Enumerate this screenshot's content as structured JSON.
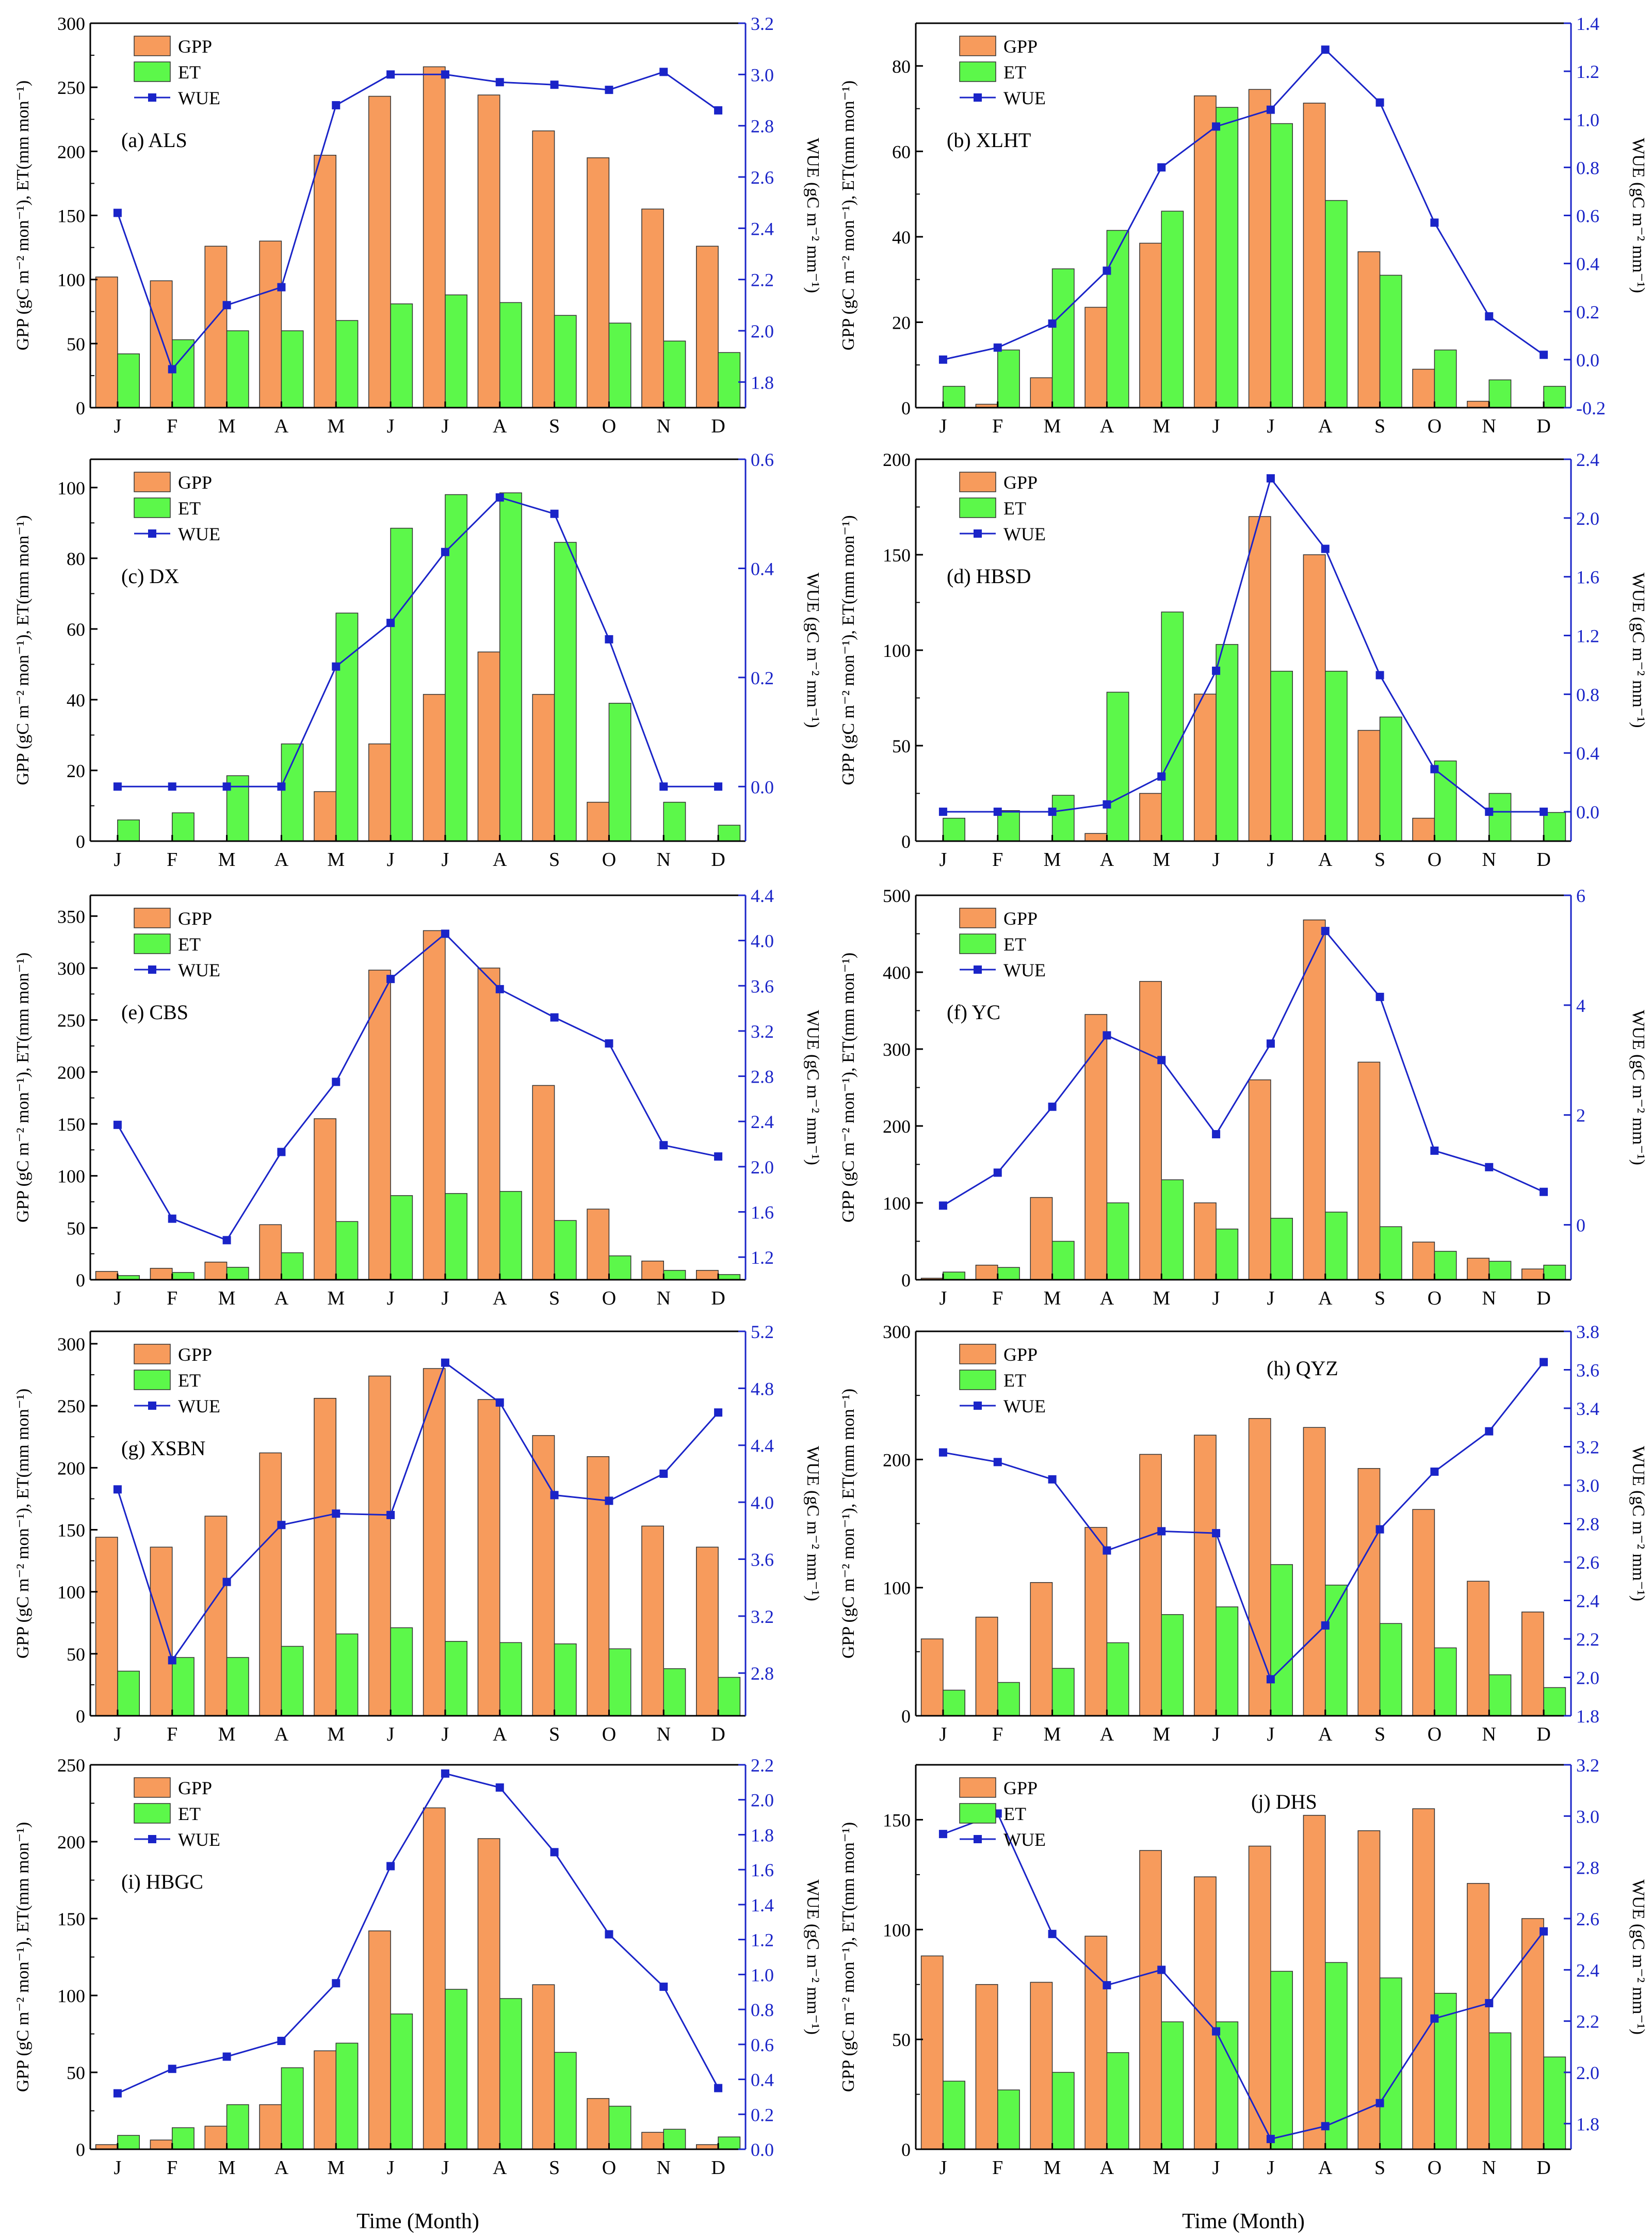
{
  "figure": {
    "x_axis_title": "Time (Month)"
  },
  "colors": {
    "gpp": "#F79B5C",
    "et": "#5CF84A",
    "wue": "#1A24C8",
    "axis": "#000000"
  },
  "chart_data": [
    {
      "type": "bar",
      "panel": "a",
      "title": "(a) ALS",
      "categories": [
        "J",
        "F",
        "M",
        "A",
        "M",
        "J",
        "J",
        "A",
        "S",
        "O",
        "N",
        "D"
      ],
      "series": [
        {
          "name": "GPP",
          "axis": "left",
          "kind": "bar",
          "values": [
            102,
            99,
            126,
            130,
            197,
            243,
            266,
            244,
            216,
            195,
            155,
            126
          ]
        },
        {
          "name": "ET",
          "axis": "left",
          "kind": "bar",
          "values": [
            42,
            53,
            60,
            60,
            68,
            81,
            88,
            82,
            72,
            66,
            52,
            43
          ]
        },
        {
          "name": "WUE",
          "axis": "right",
          "kind": "line",
          "values": [
            2.46,
            1.85,
            2.1,
            2.17,
            2.88,
            3.0,
            3.0,
            2.97,
            2.96,
            2.94,
            3.01,
            2.86
          ]
        }
      ],
      "ylabel": "GPP (gC m⁻² mon⁻¹), ET(mm mon⁻¹)",
      "ylabel_right": "WUE (gC m⁻² mm⁻¹)",
      "ylim": [
        0,
        300
      ],
      "yticks": [
        0,
        50,
        100,
        150,
        200,
        250,
        300
      ],
      "ylim_right": [
        1.7,
        3.2
      ],
      "yticks_right": [
        1.8,
        2.0,
        2.2,
        2.4,
        2.6,
        2.8,
        3.0,
        3.2
      ],
      "legend": "top-left"
    },
    {
      "type": "bar",
      "panel": "b",
      "title": "(b) XLHT",
      "categories": [
        "J",
        "F",
        "M",
        "A",
        "M",
        "J",
        "J",
        "A",
        "S",
        "O",
        "N",
        "D"
      ],
      "series": [
        {
          "name": "GPP",
          "axis": "left",
          "kind": "bar",
          "values": [
            0,
            0.8,
            7,
            23.5,
            38.5,
            73,
            74.5,
            71.3,
            36.5,
            9,
            1.5,
            0
          ]
        },
        {
          "name": "ET",
          "axis": "left",
          "kind": "bar",
          "values": [
            5,
            13.5,
            32.5,
            41.5,
            46,
            70.3,
            66.5,
            48.5,
            31,
            13.5,
            6.5,
            5
          ]
        },
        {
          "name": "WUE",
          "axis": "right",
          "kind": "line",
          "values": [
            0.0,
            0.05,
            0.15,
            0.37,
            0.8,
            0.97,
            1.04,
            1.29,
            1.07,
            0.57,
            0.18,
            0.02
          ]
        }
      ],
      "ylabel": "GPP (gC m⁻² mon⁻¹), ET(mm mon⁻¹)",
      "ylabel_right": "WUE (gC m⁻² mm⁻¹)",
      "ylim": [
        0,
        90
      ],
      "yticks": [
        0,
        20,
        40,
        60,
        80
      ],
      "ylim_right": [
        -0.2,
        1.4
      ],
      "yticks_right": [
        -0.2,
        0.0,
        0.2,
        0.4,
        0.6,
        0.8,
        1.0,
        1.2,
        1.4
      ],
      "legend": "top-left"
    },
    {
      "type": "bar",
      "panel": "c",
      "title": "(c) DX",
      "categories": [
        "J",
        "F",
        "M",
        "A",
        "M",
        "J",
        "J",
        "A",
        "S",
        "O",
        "N",
        "D"
      ],
      "series": [
        {
          "name": "GPP",
          "axis": "left",
          "kind": "bar",
          "values": [
            0,
            0,
            0,
            0,
            14,
            27.5,
            41.5,
            53.5,
            41.5,
            11,
            0,
            0
          ]
        },
        {
          "name": "ET",
          "axis": "left",
          "kind": "bar",
          "values": [
            6,
            8,
            18.5,
            27.5,
            64.5,
            88.5,
            98,
            98.5,
            84.5,
            39,
            11,
            4.5
          ]
        },
        {
          "name": "WUE",
          "axis": "right",
          "kind": "line",
          "values": [
            0,
            0,
            0,
            0,
            0.22,
            0.3,
            0.43,
            0.53,
            0.5,
            0.27,
            0,
            0
          ]
        }
      ],
      "ylabel": "GPP (gC m⁻² mon⁻¹), ET(mm mon⁻¹)",
      "ylabel_right": "WUE (gC m⁻² mm⁻¹)",
      "ylim": [
        0,
        108
      ],
      "yticks": [
        0,
        20,
        40,
        60,
        80,
        100
      ],
      "ylim_right": [
        -0.1,
        0.6
      ],
      "yticks_right": [
        0.0,
        0.2,
        0.4,
        0.6
      ],
      "legend": "top-left"
    },
    {
      "type": "bar",
      "panel": "d",
      "title": "(d) HBSD",
      "categories": [
        "J",
        "F",
        "M",
        "A",
        "M",
        "J",
        "J",
        "A",
        "S",
        "O",
        "N",
        "D"
      ],
      "series": [
        {
          "name": "GPP",
          "axis": "left",
          "kind": "bar",
          "values": [
            0,
            0,
            0,
            4,
            25,
            77,
            170,
            150,
            58,
            12,
            0,
            0
          ]
        },
        {
          "name": "ET",
          "axis": "left",
          "kind": "bar",
          "values": [
            12,
            16,
            24,
            78,
            120,
            103,
            89,
            89,
            65,
            42,
            25,
            15
          ]
        },
        {
          "name": "WUE",
          "axis": "right",
          "kind": "line",
          "values": [
            0,
            0,
            0,
            0.05,
            0.24,
            0.96,
            2.27,
            1.79,
            0.93,
            0.29,
            0,
            0
          ]
        }
      ],
      "ylabel": "GPP (gC m⁻² mon⁻¹), ET(mm mon⁻¹)",
      "ylabel_right": "WUE (gC m⁻² mm⁻¹)",
      "ylim": [
        0,
        200
      ],
      "yticks": [
        0,
        50,
        100,
        150,
        200
      ],
      "ylim_right": [
        -0.2,
        2.4
      ],
      "yticks_right": [
        0.0,
        0.4,
        0.8,
        1.2,
        1.6,
        2.0,
        2.4
      ],
      "legend": "top-left"
    },
    {
      "type": "bar",
      "panel": "e",
      "title": "(e) CBS",
      "categories": [
        "J",
        "F",
        "M",
        "A",
        "M",
        "J",
        "J",
        "A",
        "S",
        "O",
        "N",
        "D"
      ],
      "series": [
        {
          "name": "GPP",
          "axis": "left",
          "kind": "bar",
          "values": [
            8,
            11,
            17,
            53,
            155,
            298,
            336,
            300,
            187,
            68,
            18,
            9
          ]
        },
        {
          "name": "ET",
          "axis": "left",
          "kind": "bar",
          "values": [
            4,
            7,
            12,
            26,
            56,
            81,
            83,
            85,
            57,
            23,
            9,
            5
          ]
        },
        {
          "name": "WUE",
          "axis": "right",
          "kind": "line",
          "values": [
            2.37,
            1.54,
            1.35,
            2.13,
            2.75,
            3.66,
            4.06,
            3.57,
            3.32,
            3.09,
            2.19,
            2.09
          ]
        }
      ],
      "ylabel": "GPP (gC m⁻² mon⁻¹), ET(mm mon⁻¹)",
      "ylabel_right": "WUE (gC m⁻² mm⁻¹)",
      "ylim": [
        0,
        370
      ],
      "yticks": [
        0,
        50,
        100,
        150,
        200,
        250,
        300,
        350
      ],
      "ylim_right": [
        1.0,
        4.4
      ],
      "yticks_right": [
        1.2,
        1.6,
        2.0,
        2.4,
        2.8,
        3.2,
        3.6,
        4.0,
        4.4
      ],
      "legend": "top-left"
    },
    {
      "type": "bar",
      "panel": "f",
      "title": "(f) YC",
      "categories": [
        "J",
        "F",
        "M",
        "A",
        "M",
        "J",
        "J",
        "A",
        "S",
        "O",
        "N",
        "D"
      ],
      "series": [
        {
          "name": "GPP",
          "axis": "left",
          "kind": "bar",
          "values": [
            2,
            19,
            107,
            345,
            388,
            100,
            260,
            468,
            283,
            49,
            28,
            14
          ]
        },
        {
          "name": "ET",
          "axis": "left",
          "kind": "bar",
          "values": [
            10,
            16,
            50,
            100,
            130,
            66,
            80,
            88,
            69,
            37,
            24,
            19
          ]
        },
        {
          "name": "WUE",
          "axis": "right",
          "kind": "line",
          "values": [
            0.35,
            0.95,
            2.15,
            3.45,
            3.0,
            1.65,
            3.3,
            5.35,
            4.15,
            1.35,
            1.05,
            0.6
          ]
        }
      ],
      "ylabel": "GPP (gC m⁻² mon⁻¹), ET(mm mon⁻¹)",
      "ylabel_right": "WUE (gC m⁻² mm⁻¹)",
      "ylim": [
        0,
        500
      ],
      "yticks": [
        0,
        100,
        200,
        300,
        400,
        500
      ],
      "ylim_right": [
        -1,
        6
      ],
      "yticks_right": [
        0,
        2,
        4,
        6
      ],
      "legend": "top-left"
    },
    {
      "type": "bar",
      "panel": "g",
      "title": "(g) XSBN",
      "categories": [
        "J",
        "F",
        "M",
        "A",
        "M",
        "J",
        "J",
        "A",
        "S",
        "O",
        "N",
        "D"
      ],
      "series": [
        {
          "name": "GPP",
          "axis": "left",
          "kind": "bar",
          "values": [
            144,
            136,
            161,
            212,
            256,
            274,
            280,
            255,
            226,
            209,
            153,
            136
          ]
        },
        {
          "name": "ET",
          "axis": "left",
          "kind": "bar",
          "values": [
            36,
            47,
            47,
            56,
            66,
            71,
            60,
            59,
            58,
            54,
            38,
            31
          ]
        },
        {
          "name": "WUE",
          "axis": "right",
          "kind": "line",
          "values": [
            4.09,
            2.89,
            3.44,
            3.84,
            3.92,
            3.91,
            4.98,
            4.7,
            4.05,
            4.01,
            4.2,
            4.63
          ]
        }
      ],
      "ylabel": "GPP (gC m⁻² mon⁻¹), ET(mm mon⁻¹)",
      "ylabel_right": "WUE (gC m⁻² mm⁻¹)",
      "ylim": [
        0,
        310
      ],
      "yticks": [
        0,
        50,
        100,
        150,
        200,
        250,
        300
      ],
      "ylim_right": [
        2.5,
        5.2
      ],
      "yticks_right": [
        2.8,
        3.2,
        3.6,
        4.0,
        4.4,
        4.8,
        5.2
      ],
      "legend": "top-left"
    },
    {
      "type": "bar",
      "panel": "h",
      "title": "(h) QYZ",
      "categories": [
        "J",
        "F",
        "M",
        "A",
        "M",
        "J",
        "J",
        "A",
        "S",
        "O",
        "N",
        "D"
      ],
      "series": [
        {
          "name": "GPP",
          "axis": "left",
          "kind": "bar",
          "values": [
            60,
            77,
            104,
            147,
            204,
            219,
            232,
            225,
            193,
            161,
            105,
            81
          ]
        },
        {
          "name": "ET",
          "axis": "left",
          "kind": "bar",
          "values": [
            20,
            26,
            37,
            57,
            79,
            85,
            118,
            102,
            72,
            53,
            32,
            22
          ]
        },
        {
          "name": "WUE",
          "axis": "right",
          "kind": "line",
          "values": [
            3.17,
            3.12,
            3.03,
            2.66,
            2.76,
            2.75,
            1.99,
            2.27,
            2.77,
            3.07,
            3.28,
            3.64
          ]
        }
      ],
      "ylabel": "GPP (gC m⁻² mon⁻¹), ET(mm mon⁻¹)",
      "ylabel_right": "WUE (gC m⁻² mm⁻¹)",
      "ylim": [
        0,
        300
      ],
      "yticks": [
        0,
        100,
        200,
        300
      ],
      "ylim_right": [
        1.8,
        3.8
      ],
      "yticks_right": [
        1.8,
        2.0,
        2.2,
        2.4,
        2.6,
        2.8,
        3.0,
        3.2,
        3.4,
        3.6,
        3.8
      ],
      "legend": "top-left"
    },
    {
      "type": "bar",
      "panel": "i",
      "title": "(i) HBGC",
      "categories": [
        "J",
        "F",
        "M",
        "A",
        "M",
        "J",
        "J",
        "A",
        "S",
        "O",
        "N",
        "D"
      ],
      "series": [
        {
          "name": "GPP",
          "axis": "left",
          "kind": "bar",
          "values": [
            3,
            6,
            15,
            29,
            64,
            142,
            222,
            202,
            107,
            33,
            11,
            3
          ]
        },
        {
          "name": "ET",
          "axis": "left",
          "kind": "bar",
          "values": [
            9,
            14,
            29,
            53,
            69,
            88,
            104,
            98,
            63,
            28,
            13,
            8
          ]
        },
        {
          "name": "WUE",
          "axis": "right",
          "kind": "line",
          "values": [
            0.32,
            0.46,
            0.53,
            0.62,
            0.95,
            1.62,
            2.15,
            2.07,
            1.7,
            1.23,
            0.93,
            0.35
          ]
        }
      ],
      "ylabel": "GPP (gC m⁻² mon⁻¹), ET(mm mon⁻¹)",
      "ylabel_right": "WUE (gC m⁻² mm⁻¹)",
      "ylim": [
        0,
        250
      ],
      "yticks": [
        0,
        50,
        100,
        150,
        200,
        250
      ],
      "ylim_right": [
        0,
        2.2
      ],
      "yticks_right": [
        0.0,
        0.2,
        0.4,
        0.6,
        0.8,
        1.0,
        1.2,
        1.4,
        1.6,
        1.8,
        2.0,
        2.2
      ],
      "legend": "top-left"
    },
    {
      "type": "bar",
      "panel": "j",
      "title": "(j) DHS",
      "categories": [
        "J",
        "F",
        "M",
        "A",
        "M",
        "J",
        "J",
        "A",
        "S",
        "O",
        "N",
        "D"
      ],
      "series": [
        {
          "name": "GPP",
          "axis": "left",
          "kind": "bar",
          "values": [
            88,
            75,
            76,
            97,
            136,
            124,
            138,
            152,
            145,
            155,
            121,
            105
          ]
        },
        {
          "name": "ET",
          "axis": "left",
          "kind": "bar",
          "values": [
            31,
            27,
            35,
            44,
            58,
            58,
            81,
            85,
            78,
            71,
            53,
            42
          ]
        },
        {
          "name": "WUE",
          "axis": "right",
          "kind": "line",
          "values": [
            2.93,
            3.01,
            2.54,
            2.34,
            2.4,
            2.16,
            1.74,
            1.79,
            1.88,
            2.21,
            2.27,
            2.55
          ]
        }
      ],
      "ylabel": "GPP (gC m⁻² mon⁻¹), ET(mm mon⁻¹)",
      "ylabel_right": "WUE (gC m⁻² mm⁻¹)",
      "ylim": [
        0,
        175
      ],
      "yticks": [
        0,
        50,
        100,
        150
      ],
      "ylim_right": [
        1.7,
        3.2
      ],
      "yticks_right": [
        1.8,
        2.0,
        2.2,
        2.4,
        2.6,
        2.8,
        3.0,
        3.2
      ],
      "legend": "top-left"
    }
  ]
}
